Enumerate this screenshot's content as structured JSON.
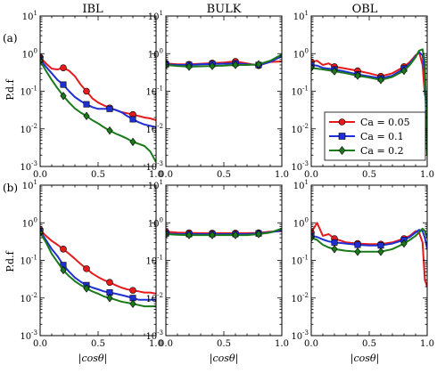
{
  "figure": {
    "columns": [
      "IBL",
      "BULK",
      "OBL"
    ],
    "rows": [
      "(a)",
      "(b)"
    ],
    "ylabel": "P.d.f",
    "xlabel": "|cosθ|",
    "xticks": [
      "0.0",
      "0.5",
      "1.0"
    ],
    "yticks": [
      {
        "base": "10",
        "exp": "1"
      },
      {
        "base": "10",
        "exp": "0"
      },
      {
        "base": "10",
        "exp": "-1"
      },
      {
        "base": "10",
        "exp": "-2"
      },
      {
        "base": "10",
        "exp": "-3"
      }
    ],
    "legend": [
      "Ca = 0.05",
      "Ca = 0.1",
      "Ca = 0.2"
    ]
  },
  "chart_data": {
    "type": "line",
    "layout": "2x3 grid",
    "yscale": "log",
    "ylim": [
      0.001,
      10
    ],
    "xlim": [
      0,
      1
    ],
    "grid": false,
    "legend_placement": "lower-right of panel (a) OBL",
    "series_styles": [
      {
        "name": "Ca = 0.05",
        "color": "#e41a1c",
        "marker": "circle"
      },
      {
        "name": "Ca = 0.1",
        "color": "#1f2fd6",
        "marker": "square"
      },
      {
        "name": "Ca = 0.2",
        "color": "#1a7a1a",
        "marker": "diamond"
      }
    ],
    "panels": [
      {
        "row": "(a)",
        "column": "IBL",
        "series": [
          {
            "name": "Ca = 0.05",
            "x": [
              0.0,
              0.05,
              0.1,
              0.15,
              0.2,
              0.25,
              0.3,
              0.35,
              0.4,
              0.45,
              0.5,
              0.55,
              0.6,
              0.65,
              0.7,
              0.75,
              0.8,
              0.85,
              0.9,
              0.95,
              1.0
            ],
            "y": [
              0.8,
              0.55,
              0.4,
              0.38,
              0.42,
              0.35,
              0.25,
              0.15,
              0.1,
              0.065,
              0.05,
              0.042,
              0.036,
              0.032,
              0.028,
              0.026,
              0.024,
              0.022,
              0.02,
              0.019,
              0.017
            ]
          },
          {
            "name": "Ca = 0.1",
            "x": [
              0.0,
              0.05,
              0.1,
              0.15,
              0.2,
              0.25,
              0.3,
              0.35,
              0.4,
              0.45,
              0.5,
              0.55,
              0.6,
              0.65,
              0.7,
              0.75,
              0.8,
              0.85,
              0.9,
              0.95,
              1.0
            ],
            "y": [
              0.7,
              0.45,
              0.3,
              0.2,
              0.15,
              0.1,
              0.07,
              0.055,
              0.045,
              0.038,
              0.034,
              0.034,
              0.034,
              0.032,
              0.028,
              0.022,
              0.018,
              0.015,
              0.013,
              0.012,
              0.011
            ]
          },
          {
            "name": "Ca = 0.2",
            "x": [
              0.0,
              0.05,
              0.1,
              0.15,
              0.2,
              0.25,
              0.3,
              0.35,
              0.4,
              0.45,
              0.5,
              0.55,
              0.6,
              0.65,
              0.7,
              0.75,
              0.8,
              0.85,
              0.9,
              0.95,
              1.0
            ],
            "y": [
              0.65,
              0.35,
              0.2,
              0.12,
              0.075,
              0.05,
              0.035,
              0.027,
              0.022,
              0.017,
              0.014,
              0.011,
              0.009,
              0.0075,
              0.0065,
              0.0055,
              0.0045,
              0.004,
              0.0035,
              0.0025,
              0.0013
            ]
          }
        ]
      },
      {
        "row": "(a)",
        "column": "BULK",
        "series": [
          {
            "name": "Ca = 0.05",
            "x": [
              0.0,
              0.1,
              0.2,
              0.3,
              0.4,
              0.5,
              0.6,
              0.7,
              0.8,
              0.9,
              1.0
            ],
            "y": [
              0.55,
              0.52,
              0.52,
              0.54,
              0.56,
              0.58,
              0.62,
              0.55,
              0.48,
              0.6,
              0.62
            ]
          },
          {
            "name": "Ca = 0.1",
            "x": [
              0.0,
              0.1,
              0.2,
              0.3,
              0.4,
              0.5,
              0.6,
              0.7,
              0.8,
              0.9,
              1.0
            ],
            "y": [
              0.52,
              0.5,
              0.5,
              0.52,
              0.53,
              0.54,
              0.55,
              0.52,
              0.5,
              0.6,
              0.85
            ]
          },
          {
            "name": "Ca = 0.2",
            "x": [
              0.0,
              0.1,
              0.2,
              0.3,
              0.4,
              0.5,
              0.6,
              0.7,
              0.8,
              0.9,
              1.0
            ],
            "y": [
              0.5,
              0.47,
              0.45,
              0.46,
              0.47,
              0.48,
              0.5,
              0.5,
              0.52,
              0.65,
              0.95
            ]
          }
        ]
      },
      {
        "row": "(a)",
        "column": "OBL",
        "series": [
          {
            "name": "Ca = 0.05",
            "x": [
              0.0,
              0.05,
              0.1,
              0.15,
              0.2,
              0.3,
              0.4,
              0.5,
              0.6,
              0.7,
              0.8,
              0.85,
              0.9,
              0.93,
              0.96,
              0.98,
              1.0
            ],
            "y": [
              0.6,
              0.65,
              0.5,
              0.55,
              0.45,
              0.4,
              0.35,
              0.3,
              0.25,
              0.3,
              0.45,
              0.6,
              0.9,
              1.1,
              0.5,
              0.08,
              0.06
            ]
          },
          {
            "name": "Ca = 0.1",
            "x": [
              0.0,
              0.05,
              0.1,
              0.15,
              0.2,
              0.3,
              0.4,
              0.5,
              0.6,
              0.7,
              0.8,
              0.85,
              0.9,
              0.93,
              0.96,
              0.98,
              1.0
            ],
            "y": [
              0.5,
              0.48,
              0.42,
              0.4,
              0.38,
              0.33,
              0.28,
              0.25,
              0.22,
              0.26,
              0.4,
              0.55,
              0.85,
              1.1,
              0.9,
              0.3,
              0.002
            ]
          },
          {
            "name": "Ca = 0.2",
            "x": [
              0.0,
              0.05,
              0.1,
              0.15,
              0.2,
              0.3,
              0.4,
              0.5,
              0.6,
              0.7,
              0.8,
              0.85,
              0.9,
              0.93,
              0.96,
              0.98,
              1.0
            ],
            "y": [
              0.42,
              0.4,
              0.38,
              0.36,
              0.34,
              0.3,
              0.26,
              0.23,
              0.2,
              0.24,
              0.35,
              0.5,
              0.8,
              1.2,
              1.3,
              0.6,
              0.002
            ]
          }
        ]
      },
      {
        "row": "(b)",
        "column": "IBL",
        "series": [
          {
            "name": "Ca = 0.05",
            "x": [
              0.0,
              0.05,
              0.1,
              0.15,
              0.2,
              0.25,
              0.3,
              0.35,
              0.4,
              0.45,
              0.5,
              0.55,
              0.6,
              0.65,
              0.7,
              0.75,
              0.8,
              0.85,
              0.9,
              0.95,
              1.0
            ],
            "y": [
              0.65,
              0.45,
              0.33,
              0.26,
              0.2,
              0.15,
              0.11,
              0.08,
              0.06,
              0.045,
              0.036,
              0.03,
              0.026,
              0.022,
              0.019,
              0.017,
              0.016,
              0.015,
              0.014,
              0.014,
              0.013
            ]
          },
          {
            "name": "Ca = 0.1",
            "x": [
              0.0,
              0.05,
              0.1,
              0.15,
              0.2,
              0.25,
              0.3,
              0.35,
              0.4,
              0.45,
              0.5,
              0.55,
              0.6,
              0.65,
              0.7,
              0.75,
              0.8,
              0.85,
              0.9,
              0.95,
              1.0
            ],
            "y": [
              0.6,
              0.35,
              0.2,
              0.13,
              0.075,
              0.05,
              0.035,
              0.027,
              0.022,
              0.019,
              0.017,
              0.015,
              0.014,
              0.013,
              0.012,
              0.011,
              0.01,
              0.009,
              0.009,
              0.009,
              0.009
            ]
          },
          {
            "name": "Ca = 0.2",
            "x": [
              0.0,
              0.05,
              0.1,
              0.15,
              0.2,
              0.25,
              0.3,
              0.35,
              0.4,
              0.45,
              0.5,
              0.55,
              0.6,
              0.65,
              0.7,
              0.75,
              0.8,
              0.85,
              0.9,
              0.95,
              1.0
            ],
            "y": [
              0.55,
              0.3,
              0.15,
              0.09,
              0.055,
              0.038,
              0.028,
              0.022,
              0.018,
              0.015,
              0.013,
              0.011,
              0.01,
              0.009,
              0.008,
              0.0075,
              0.007,
              0.0065,
              0.006,
              0.006,
              0.006
            ]
          }
        ]
      },
      {
        "row": "(b)",
        "column": "BULK",
        "series": [
          {
            "name": "Ca = 0.05",
            "x": [
              0.0,
              0.1,
              0.2,
              0.3,
              0.4,
              0.5,
              0.6,
              0.7,
              0.8,
              0.9,
              1.0
            ],
            "y": [
              0.58,
              0.55,
              0.54,
              0.53,
              0.53,
              0.53,
              0.53,
              0.53,
              0.54,
              0.58,
              0.6
            ]
          },
          {
            "name": "Ca = 0.1",
            "x": [
              0.0,
              0.1,
              0.2,
              0.3,
              0.4,
              0.5,
              0.6,
              0.7,
              0.8,
              0.9,
              1.0
            ],
            "y": [
              0.52,
              0.5,
              0.5,
              0.5,
              0.5,
              0.5,
              0.5,
              0.5,
              0.52,
              0.56,
              0.62
            ]
          },
          {
            "name": "Ca = 0.2",
            "x": [
              0.0,
              0.1,
              0.2,
              0.3,
              0.4,
              0.5,
              0.6,
              0.7,
              0.8,
              0.9,
              1.0
            ],
            "y": [
              0.5,
              0.48,
              0.47,
              0.47,
              0.47,
              0.47,
              0.47,
              0.47,
              0.5,
              0.55,
              0.7
            ]
          }
        ]
      },
      {
        "row": "(b)",
        "column": "OBL",
        "series": [
          {
            "name": "Ca = 0.05",
            "x": [
              0.0,
              0.05,
              0.1,
              0.15,
              0.2,
              0.3,
              0.4,
              0.5,
              0.6,
              0.7,
              0.8,
              0.85,
              0.9,
              0.93,
              0.96,
              0.98,
              1.0
            ],
            "y": [
              0.55,
              1.0,
              0.45,
              0.5,
              0.38,
              0.3,
              0.28,
              0.27,
              0.27,
              0.3,
              0.38,
              0.45,
              0.6,
              0.55,
              0.3,
              0.03,
              0.02
            ]
          },
          {
            "name": "Ca = 0.1",
            "x": [
              0.0,
              0.05,
              0.1,
              0.15,
              0.2,
              0.3,
              0.4,
              0.5,
              0.6,
              0.7,
              0.8,
              0.85,
              0.9,
              0.93,
              0.96,
              0.98,
              1.0
            ],
            "y": [
              0.45,
              0.42,
              0.36,
              0.32,
              0.3,
              0.28,
              0.26,
              0.25,
              0.25,
              0.28,
              0.35,
              0.42,
              0.55,
              0.65,
              0.6,
              0.4,
              0.2
            ]
          },
          {
            "name": "Ca = 0.2",
            "x": [
              0.0,
              0.05,
              0.1,
              0.15,
              0.2,
              0.3,
              0.4,
              0.5,
              0.6,
              0.7,
              0.8,
              0.85,
              0.9,
              0.93,
              0.96,
              0.98,
              1.0
            ],
            "y": [
              0.4,
              0.35,
              0.26,
              0.22,
              0.2,
              0.18,
              0.17,
              0.17,
              0.17,
              0.2,
              0.28,
              0.35,
              0.45,
              0.55,
              0.7,
              0.6,
              0.4
            ]
          }
        ]
      }
    ]
  }
}
